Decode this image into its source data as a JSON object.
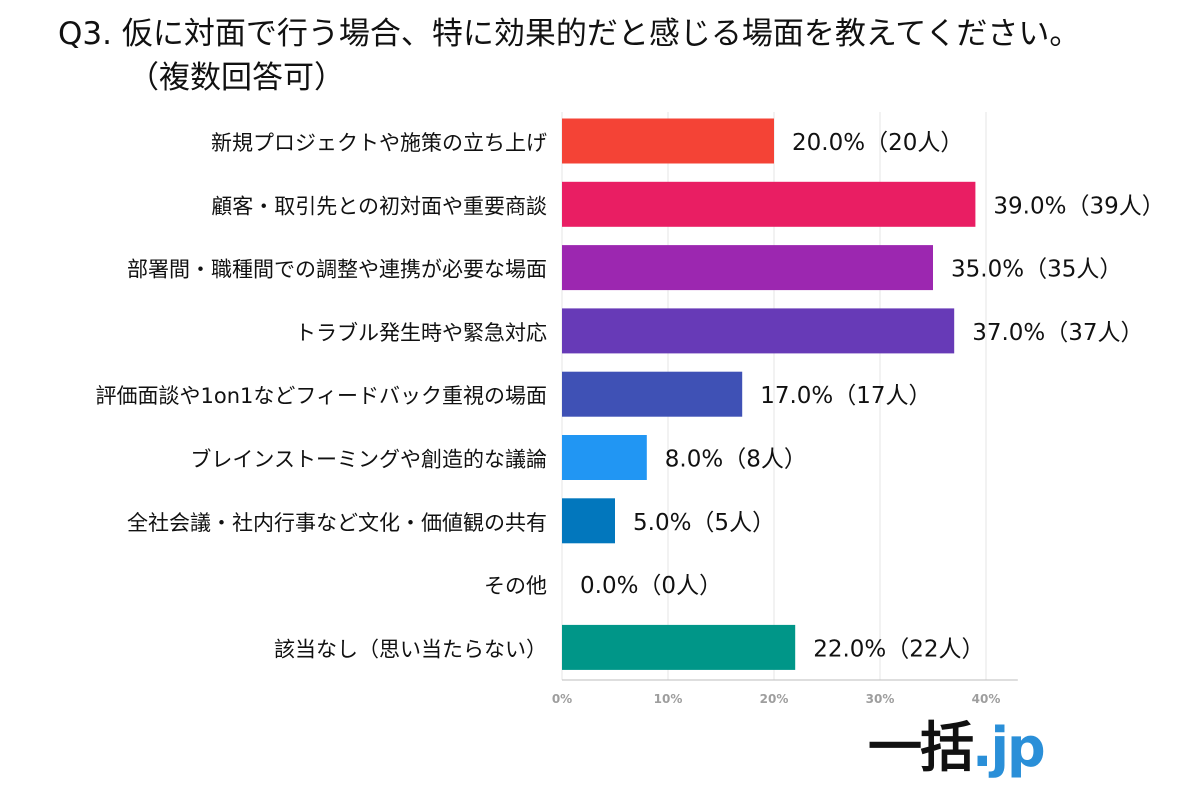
{
  "title": {
    "line1": "Q3.  仮に対面で行う場合、特に効果的だと感じる場面を教えてください。",
    "line2": "（複数回答可）"
  },
  "logo": {
    "main": "一括",
    "suffix": ".jp"
  },
  "chart_data": {
    "type": "bar",
    "orientation": "horizontal",
    "title": "Q3.  仮に対面で行う場合、特に効果的だと感じる場面を教えてください。（複数回答可）",
    "categories": [
      "新規プロジェクトや施策の立ち上げ",
      "顧客・取引先との初対面や重要商談",
      "部署間・職種間での調整や連携が必要な場面",
      "トラブル発生時や緊急対応",
      "評価面談や1on1などフィードバック重視の場面",
      "ブレインストーミングや創造的な議論",
      "全社会議・社内行事など文化・価値観の共有",
      "その他",
      "該当なし（思い当たらない）"
    ],
    "values": [
      20.0,
      39.0,
      35.0,
      37.0,
      17.0,
      8.0,
      5.0,
      0.0,
      22.0
    ],
    "counts": [
      20,
      39,
      35,
      37,
      17,
      8,
      5,
      0,
      22
    ],
    "data_labels": [
      "20.0%（20人）",
      "39.0%（39人）",
      "35.0%（35人）",
      "37.0%（37人）",
      "17.0%（17人）",
      "8.0%（8人）",
      "5.0%（5人）",
      "0.0%（0人）",
      "22.0%（22人）"
    ],
    "colors": [
      "#f44336",
      "#e91e63",
      "#9c27b0",
      "#673ab7",
      "#3f51b5",
      "#2196f3",
      "#0277bd",
      "#0097a7",
      "#009688"
    ],
    "x_ticks": [
      0,
      10,
      20,
      30,
      40
    ],
    "x_tick_labels": [
      "0%",
      "10%",
      "20%",
      "30%",
      "40%"
    ],
    "xlim": [
      0,
      43
    ],
    "grid": true,
    "legend": "none"
  }
}
